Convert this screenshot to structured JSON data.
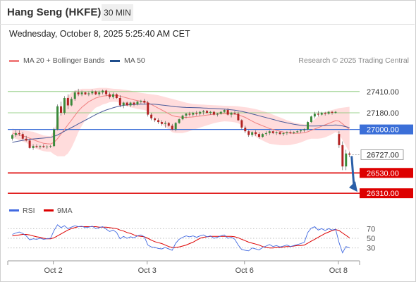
{
  "header": {
    "title": "Hang Seng (HKFE)",
    "timeframe": "30 MIN"
  },
  "timestamp": "Wednesday, October 8, 2025 5:25:40 AM CET",
  "legend": {
    "items": [
      {
        "label": "MA 20 + Bollinger Bands",
        "color": "#f08080"
      },
      {
        "label": "MA 50",
        "color": "#1f4e8c"
      }
    ],
    "credit": "Research © 2025 Trading Central"
  },
  "colors": {
    "up": "#3a8a3a",
    "down": "#b22222",
    "support": "#dd0000",
    "pivot": "#3b6fd8",
    "target": "#2a5fa8",
    "rsi": "#4169e1",
    "rsi_ma": "#dd0000",
    "resistance": "#7cc46a",
    "bands": "#ffd0d0"
  },
  "chart_data": [
    {
      "type": "candlestick",
      "x_labels": [
        "Oct 2",
        "Oct 3",
        "Oct 6",
        "Oct 8"
      ],
      "ylim": [
        26250,
        27500
      ],
      "price_levels": [
        {
          "value": 27410.0,
          "label": "27410.00",
          "kind": "resistance"
        },
        {
          "value": 27180.0,
          "label": "27180.00",
          "kind": "resistance"
        },
        {
          "value": 27000.0,
          "label": "27000.00",
          "kind": "pivot"
        },
        {
          "value": 26727.0,
          "label": "26727.00",
          "kind": "last"
        },
        {
          "value": 26530.0,
          "label": "26530.00",
          "kind": "support"
        },
        {
          "value": 26310.0,
          "label": "26310.00",
          "kind": "support"
        }
      ],
      "candles": [
        [
          26900,
          26950,
          26880,
          26940
        ],
        [
          26940,
          26990,
          26920,
          26960
        ],
        [
          26960,
          26990,
          26930,
          26950
        ],
        [
          26950,
          26970,
          26890,
          26900
        ],
        [
          26900,
          26930,
          26870,
          26880
        ],
        [
          26880,
          26900,
          26790,
          26800
        ],
        [
          26800,
          26840,
          26780,
          26820
        ],
        [
          26820,
          26840,
          26800,
          26810
        ],
        [
          26810,
          26830,
          26790,
          26820
        ],
        [
          26820,
          26840,
          26800,
          26810
        ],
        [
          26810,
          26830,
          26790,
          26815
        ],
        [
          26815,
          26830,
          26800,
          26820
        ],
        [
          26820,
          27020,
          26810,
          27000
        ],
        [
          27000,
          27270,
          26990,
          27250
        ],
        [
          27250,
          27300,
          27150,
          27180
        ],
        [
          27180,
          27360,
          27160,
          27340
        ],
        [
          27340,
          27380,
          27220,
          27260
        ],
        [
          27260,
          27350,
          27250,
          27330
        ],
        [
          27330,
          27420,
          27310,
          27400
        ],
        [
          27400,
          27440,
          27360,
          27380
        ],
        [
          27380,
          27420,
          27360,
          27400
        ],
        [
          27400,
          27410,
          27370,
          27380
        ],
        [
          27380,
          27410,
          27360,
          27390
        ],
        [
          27390,
          27430,
          27370,
          27410
        ],
        [
          27410,
          27420,
          27370,
          27380
        ],
        [
          27380,
          27420,
          27360,
          27400
        ],
        [
          27400,
          27430,
          27380,
          27420
        ],
        [
          27420,
          27430,
          27360,
          27380
        ],
        [
          27380,
          27400,
          27330,
          27350
        ],
        [
          27350,
          27400,
          27330,
          27380
        ],
        [
          27380,
          27390,
          27330,
          27340
        ],
        [
          27340,
          27370,
          27240,
          27260
        ],
        [
          27260,
          27300,
          27230,
          27290
        ],
        [
          27290,
          27300,
          27250,
          27260
        ],
        [
          27260,
          27300,
          27240,
          27290
        ],
        [
          27290,
          27300,
          27250,
          27270
        ],
        [
          27270,
          27310,
          27260,
          27300
        ],
        [
          27300,
          27320,
          27280,
          27310
        ],
        [
          27310,
          27330,
          27270,
          27290
        ],
        [
          27290,
          27310,
          27140,
          27160
        ],
        [
          27160,
          27180,
          27100,
          27120
        ],
        [
          27120,
          27130,
          27080,
          27100
        ],
        [
          27100,
          27120,
          27060,
          27080
        ],
        [
          27080,
          27100,
          27040,
          27060
        ],
        [
          27060,
          27090,
          27020,
          27070
        ],
        [
          27070,
          27080,
          27030,
          27040
        ],
        [
          27040,
          27060,
          26990,
          27000
        ],
        [
          27000,
          27080,
          26980,
          27070
        ],
        [
          27070,
          27120,
          27060,
          27110
        ],
        [
          27110,
          27160,
          27100,
          27150
        ],
        [
          27150,
          27180,
          27120,
          27170
        ],
        [
          27170,
          27190,
          27140,
          27160
        ],
        [
          27160,
          27190,
          27140,
          27180
        ],
        [
          27180,
          27200,
          27150,
          27170
        ],
        [
          27170,
          27200,
          27150,
          27190
        ],
        [
          27190,
          27210,
          27160,
          27200
        ],
        [
          27200,
          27210,
          27170,
          27180
        ],
        [
          27180,
          27200,
          27160,
          27190
        ],
        [
          27190,
          27200,
          27150,
          27160
        ],
        [
          27160,
          27180,
          27140,
          27170
        ],
        [
          27170,
          27200,
          27160,
          27190
        ],
        [
          27190,
          27220,
          27180,
          27210
        ],
        [
          27210,
          27230,
          27150,
          27160
        ],
        [
          27160,
          27190,
          27130,
          27180
        ],
        [
          27180,
          27200,
          27160,
          27170
        ],
        [
          27170,
          27190,
          27090,
          27100
        ],
        [
          27100,
          27110,
          27000,
          27020
        ],
        [
          27020,
          27040,
          26960,
          26980
        ],
        [
          26980,
          26990,
          26920,
          26940
        ],
        [
          26940,
          26980,
          26920,
          26970
        ],
        [
          26970,
          26990,
          26930,
          26950
        ],
        [
          26950,
          26970,
          26900,
          26920
        ],
        [
          26920,
          26960,
          26910,
          26950
        ],
        [
          26950,
          26980,
          26930,
          26960
        ],
        [
          26960,
          26990,
          26940,
          26980
        ],
        [
          26980,
          26990,
          26950,
          26960
        ],
        [
          26960,
          26980,
          26940,
          26970
        ],
        [
          26970,
          26980,
          26940,
          26950
        ],
        [
          26950,
          26970,
          26930,
          26960
        ],
        [
          26960,
          26980,
          26940,
          26970
        ],
        [
          26970,
          26990,
          26950,
          26960
        ],
        [
          26960,
          26980,
          26950,
          26970
        ],
        [
          26970,
          26990,
          26960,
          26980
        ],
        [
          26980,
          27000,
          26960,
          26990
        ],
        [
          26990,
          27010,
          26970,
          27000
        ],
        [
          27000,
          27090,
          26990,
          27080
        ],
        [
          27080,
          27150,
          27070,
          27140
        ],
        [
          27140,
          27190,
          27120,
          27170
        ],
        [
          27170,
          27200,
          27140,
          27160
        ],
        [
          27160,
          27190,
          27150,
          27180
        ],
        [
          27180,
          27190,
          27150,
          27170
        ],
        [
          27170,
          27200,
          27160,
          27190
        ],
        [
          27190,
          27200,
          27160,
          27180
        ],
        [
          27180,
          27200,
          27170,
          27190
        ],
        [
          26950,
          26980,
          26800,
          26830
        ],
        [
          26830,
          26870,
          26560,
          26600
        ],
        [
          26600,
          26780,
          26560,
          26740
        ],
        [
          26740,
          26760,
          26700,
          26727
        ]
      ],
      "ma20": [
        26960,
        26950,
        26940,
        26930,
        26920,
        26905,
        26890,
        26875,
        26862,
        26850,
        26845,
        26842,
        26860,
        26900,
        26950,
        27000,
        27050,
        27100,
        27150,
        27200,
        27240,
        27270,
        27300,
        27320,
        27340,
        27350,
        27360,
        27365,
        27370,
        27370,
        27368,
        27360,
        27350,
        27340,
        27330,
        27320,
        27312,
        27305,
        27300,
        27290,
        27270,
        27250,
        27230,
        27210,
        27190,
        27170,
        27150,
        27140,
        27135,
        27130,
        27130,
        27132,
        27135,
        27140,
        27145,
        27150,
        27155,
        27160,
        27165,
        27168,
        27170,
        27172,
        27170,
        27168,
        27165,
        27158,
        27145,
        27130,
        27110,
        27090,
        27070,
        27055,
        27040,
        27025,
        27010,
        27000,
        26990,
        26980,
        26972,
        26965,
        26960,
        26958,
        26958,
        26960,
        26965,
        26975,
        26990,
        27005,
        27020,
        27035,
        27050,
        27065,
        27080,
        27095,
        27090,
        27060,
        27030,
        27000
      ],
      "ma50": [
        26860,
        26868,
        26875,
        26882,
        26888,
        26893,
        26897,
        26900,
        26903,
        26906,
        26910,
        26915,
        26925,
        26940,
        26960,
        26980,
        27000,
        27020,
        27040,
        27060,
        27080,
        27100,
        27120,
        27140,
        27160,
        27178,
        27195,
        27210,
        27222,
        27234,
        27245,
        27253,
        27260,
        27265,
        27268,
        27270,
        27272,
        27273,
        27274,
        27275,
        27274,
        27272,
        27268,
        27264,
        27260,
        27255,
        27250,
        27245,
        27242,
        27240,
        27238,
        27237,
        27236,
        27235,
        27234,
        27232,
        27230,
        27228,
        27226,
        27224,
        27222,
        27220,
        27216,
        27212,
        27208,
        27202,
        27195,
        27187,
        27178,
        27168,
        27158,
        27148,
        27138,
        27128,
        27118,
        27108,
        27098,
        27088,
        27080,
        27072,
        27064,
        27056,
        27050,
        27044,
        27040,
        27038,
        27037,
        27037,
        27038,
        27040,
        27042,
        27044,
        27046,
        27048,
        27045,
        27038,
        27030,
        27020
      ],
      "bb_upper": [
        27010,
        27000,
        26995,
        26990,
        26985,
        26980,
        26975,
        26960,
        26948,
        26935,
        26930,
        26925,
        26990,
        27090,
        27190,
        27290,
        27360,
        27400,
        27420,
        27430,
        27440,
        27440,
        27440,
        27440,
        27445,
        27450,
        27450,
        27450,
        27445,
        27440,
        27438,
        27435,
        27430,
        27425,
        27420,
        27410,
        27402,
        27395,
        27390,
        27385,
        27380,
        27375,
        27370,
        27360,
        27350,
        27340,
        27330,
        27320,
        27310,
        27300,
        27290,
        27282,
        27275,
        27272,
        27270,
        27268,
        27266,
        27264,
        27262,
        27260,
        27258,
        27256,
        27255,
        27254,
        27253,
        27250,
        27245,
        27240,
        27235,
        27228,
        27220,
        27210,
        27200,
        27188,
        27175,
        27160,
        27145,
        27130,
        27115,
        27100,
        27088,
        27075,
        27068,
        27060,
        27055,
        27060,
        27080,
        27110,
        27140,
        27165,
        27185,
        27200,
        27210,
        27220,
        27230,
        27235,
        27240,
        27245
      ],
      "bb_lower": [
        26910,
        26900,
        26885,
        26870,
        26855,
        26830,
        26805,
        26790,
        26776,
        26765,
        26760,
        26759,
        26730,
        26710,
        26710,
        26710,
        26740,
        26800,
        26880,
        26970,
        27040,
        27100,
        27160,
        27200,
        27235,
        27250,
        27270,
        27280,
        27295,
        27300,
        27298,
        27285,
        27270,
        27255,
        27240,
        27230,
        27222,
        27215,
        27210,
        27195,
        27160,
        27125,
        27090,
        27060,
        27030,
        27000,
        26970,
        26960,
        26960,
        26960,
        26970,
        26982,
        26995,
        27008,
        27020,
        27032,
        27044,
        27056,
        27068,
        27076,
        27082,
        27088,
        27085,
        27082,
        27077,
        27066,
        27045,
        27020,
        26985,
        26952,
        26920,
        26900,
        26880,
        26862,
        26845,
        26840,
        26835,
        26830,
        26829,
        26830,
        26832,
        26841,
        26848,
        26860,
        26875,
        26890,
        26900,
        26900,
        26900,
        26905,
        26915,
        26930,
        26950,
        26970,
        26950,
        26885,
        26820,
        26755
      ]
    },
    {
      "type": "line",
      "name": "RSI",
      "ylim": [
        15,
        85
      ],
      "levels": [
        70,
        50,
        30
      ],
      "level_labels": [
        "70",
        "50",
        "30"
      ],
      "series": [
        {
          "name": "RSI",
          "values": [
            58,
            61,
            63,
            60,
            55,
            47,
            49,
            48,
            50,
            48,
            49,
            50,
            66,
            78,
            72,
            76,
            70,
            73,
            76,
            74,
            75,
            72,
            73,
            75,
            70,
            72,
            74,
            69,
            64,
            67,
            62,
            49,
            54,
            50,
            53,
            51,
            55,
            57,
            53,
            36,
            32,
            31,
            29,
            28,
            31,
            28,
            25,
            40,
            48,
            52,
            55,
            53,
            55,
            52,
            55,
            57,
            53,
            55,
            50,
            52,
            55,
            57,
            50,
            52,
            48,
            36,
            27,
            25,
            24,
            30,
            28,
            26,
            31,
            34,
            37,
            33,
            35,
            32,
            34,
            36,
            33,
            35,
            37,
            39,
            42,
            62,
            71,
            74,
            67,
            70,
            66,
            70,
            67,
            69,
            41,
            20,
            33,
            30
          ]
        },
        {
          "name": "9MA",
          "values": [
            55,
            56,
            57,
            58,
            58,
            57,
            55,
            53,
            52,
            50,
            49,
            49,
            51,
            55,
            59,
            63,
            67,
            70,
            72,
            74,
            74,
            74,
            74,
            74,
            74,
            73,
            73,
            73,
            72,
            71,
            70,
            67,
            65,
            62,
            60,
            57,
            55,
            54,
            53,
            50,
            46,
            43,
            41,
            39,
            36,
            33,
            31,
            31,
            32,
            34,
            36,
            39,
            42,
            46,
            50,
            52,
            53,
            54,
            54,
            54,
            54,
            54,
            54,
            54,
            53,
            51,
            48,
            45,
            42,
            40,
            38,
            36,
            33,
            31,
            30,
            30,
            31,
            31,
            32,
            33,
            33,
            34,
            35,
            35,
            36,
            40,
            44,
            48,
            52,
            56,
            60,
            63,
            66,
            68,
            66,
            61,
            56,
            51
          ]
        }
      ]
    }
  ]
}
